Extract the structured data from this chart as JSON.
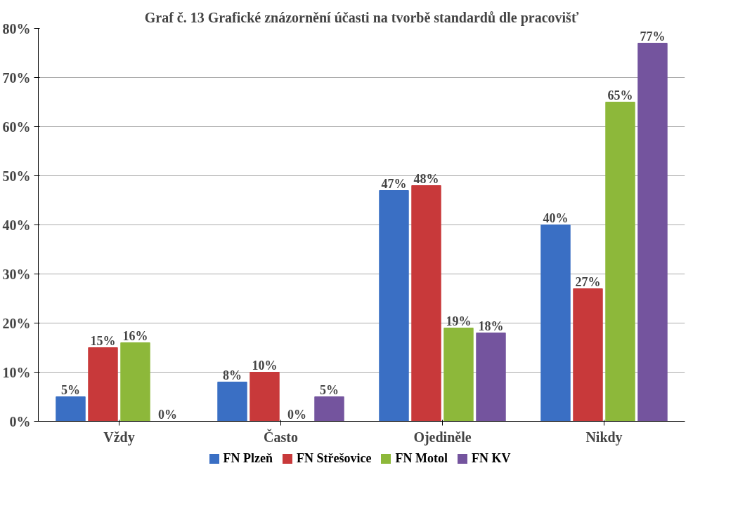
{
  "chart_data": {
    "type": "bar",
    "title": "Graf č. 13 Grafické znázornění účasti na tvorbě standardů dle pracovišť",
    "categories": [
      "Vždy",
      "Často",
      "Ojediněle",
      "Nikdy"
    ],
    "series": [
      {
        "name": "FN Plzeň",
        "color": "#3a6fc4",
        "values": [
          5,
          8,
          47,
          40
        ],
        "value_labels": [
          "5%",
          "8%",
          "47%",
          "40%"
        ]
      },
      {
        "name": "FN Střešovice",
        "color": "#c8393a",
        "values": [
          15,
          10,
          48,
          27
        ],
        "value_labels": [
          "15%",
          "10%",
          "48%",
          "27%"
        ]
      },
      {
        "name": "FN Motol",
        "color": "#8db83a",
        "values": [
          16,
          0,
          19,
          65
        ],
        "value_labels": [
          "16%",
          "0%",
          "19%",
          "65%"
        ]
      },
      {
        "name": "FN KV",
        "color": "#74549e",
        "values": [
          0,
          5,
          18,
          77
        ],
        "value_labels": [
          "0%",
          "5%",
          "18%",
          "77%"
        ]
      }
    ],
    "ylim": [
      0,
      80
    ],
    "yticks": [
      {
        "value": 0,
        "label": "0%"
      },
      {
        "value": 10,
        "label": "10%"
      },
      {
        "value": 20,
        "label": "20%"
      },
      {
        "value": 30,
        "label": "30%"
      },
      {
        "value": 40,
        "label": "40%"
      },
      {
        "value": 50,
        "label": "50%"
      },
      {
        "value": 60,
        "label": "60%"
      },
      {
        "value": 70,
        "label": "70%"
      },
      {
        "value": 80,
        "label": "80%"
      }
    ],
    "grid": "y",
    "legend": "bottom",
    "data_labels": true
  }
}
